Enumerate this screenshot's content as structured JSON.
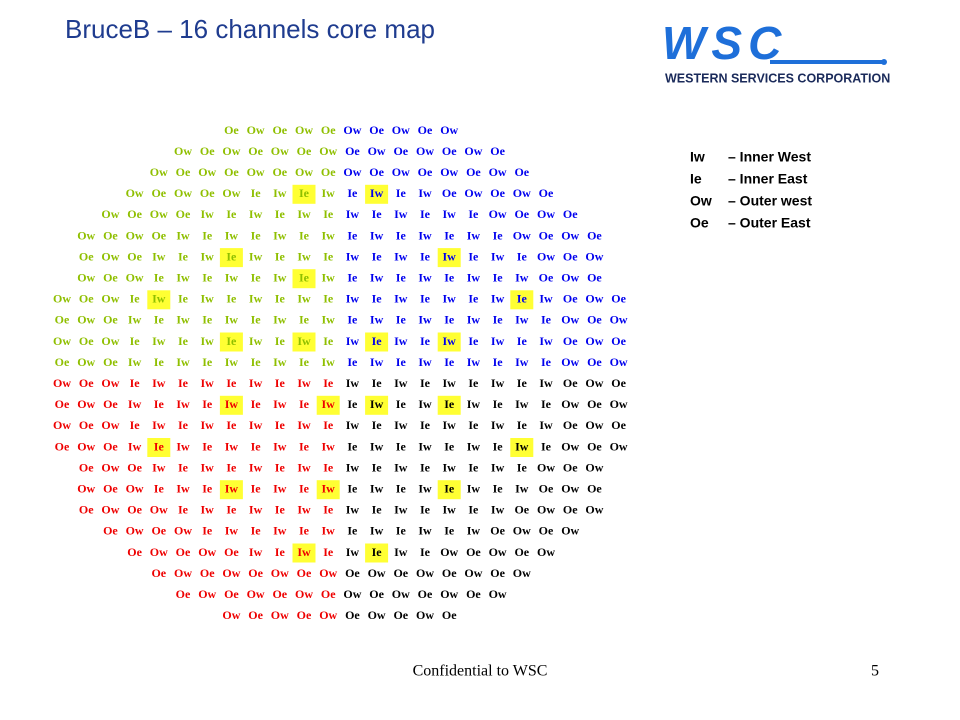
{
  "header": {
    "title": "BruceB – 16 channels core map"
  },
  "logo": {
    "mark": "WSC",
    "name": "WESTERN SERVICES CORPORATION"
  },
  "legend": [
    {
      "code": "Iw",
      "text": "– Inner West"
    },
    {
      "code": "Ie",
      "text": "– Inner East"
    },
    {
      "code": "Ow",
      "text": "– Outer west"
    },
    {
      "code": "Oe",
      "text": "– Outer East"
    }
  ],
  "core_map": {
    "quadrant_colors": {
      "top_left": "#8fbf00",
      "top_right": "#0000ee",
      "bottom_left": "#ee0000",
      "bottom_right": "#000000"
    },
    "highlight_color": "#ffff33",
    "rows": [
      {
        "cells": [
          "Oe",
          "Ow",
          "Oe",
          "Ow",
          "Oe",
          "Ow",
          "Oe",
          "Ow",
          "Oe",
          "Ow"
        ]
      },
      {
        "cells": [
          "Ow",
          "Oe",
          "Ow",
          "Oe",
          "Ow",
          "Oe",
          "Ow",
          "Oe",
          "Ow",
          "Oe",
          "Ow",
          "Oe",
          "Ow",
          "Oe"
        ]
      },
      {
        "cells": [
          "Ow",
          "Oe",
          "Ow",
          "Oe",
          "Ow",
          "Oe",
          "Ow",
          "Oe",
          "Ow",
          "Oe",
          "Ow",
          "Oe",
          "Ow",
          "Oe",
          "Ow",
          "Oe"
        ]
      },
      {
        "cells": [
          "Ow",
          "Oe",
          "Ow",
          "Oe",
          "Ow",
          "Ie",
          "Iw",
          "Ie",
          "Iw",
          "Ie",
          "Iw",
          "Ie",
          "Iw",
          "Oe",
          "Ow",
          "Oe",
          "Ow",
          "Oe"
        ],
        "selected": [
          7,
          10
        ]
      },
      {
        "cells": [
          "Ow",
          "Oe",
          "Ow",
          "Oe",
          "Iw",
          "Ie",
          "Iw",
          "Ie",
          "Iw",
          "Ie",
          "Iw",
          "Ie",
          "Iw",
          "Ie",
          "Iw",
          "Ie",
          "Ow",
          "Oe",
          "Ow",
          "Oe"
        ]
      },
      {
        "cells": [
          "Ow",
          "Oe",
          "Ow",
          "Oe",
          "Iw",
          "Ie",
          "Iw",
          "Ie",
          "Iw",
          "Ie",
          "Iw",
          "Ie",
          "Iw",
          "Ie",
          "Iw",
          "Ie",
          "Iw",
          "Ie",
          "Ow",
          "Oe",
          "Ow",
          "Oe"
        ]
      },
      {
        "cells": [
          "Oe",
          "Ow",
          "Oe",
          "Iw",
          "Ie",
          "Iw",
          "Ie",
          "Iw",
          "Ie",
          "Iw",
          "Ie",
          "Iw",
          "Ie",
          "Iw",
          "Ie",
          "Iw",
          "Ie",
          "Iw",
          "Ie",
          "Ow",
          "Oe",
          "Ow"
        ],
        "selected": [
          6,
          15
        ]
      },
      {
        "cells": [
          "Ow",
          "Oe",
          "Ow",
          "Ie",
          "Iw",
          "Ie",
          "Iw",
          "Ie",
          "Iw",
          "Ie",
          "Iw",
          "Ie",
          "Iw",
          "Ie",
          "Iw",
          "Ie",
          "Iw",
          "Ie",
          "Iw",
          "Oe",
          "Ow",
          "Oe"
        ],
        "selected": [
          9
        ]
      },
      {
        "cells": [
          "Ow",
          "Oe",
          "Ow",
          "Ie",
          "Iw",
          "Ie",
          "Iw",
          "Ie",
          "Iw",
          "Ie",
          "Iw",
          "Ie",
          "Iw",
          "Ie",
          "Iw",
          "Ie",
          "Iw",
          "Ie",
          "Iw",
          "Ie",
          "Iw",
          "Oe",
          "Ow",
          "Oe"
        ],
        "selected": [
          4,
          19
        ]
      },
      {
        "cells": [
          "Oe",
          "Ow",
          "Oe",
          "Iw",
          "Ie",
          "Iw",
          "Ie",
          "Iw",
          "Ie",
          "Iw",
          "Ie",
          "Iw",
          "Ie",
          "Iw",
          "Ie",
          "Iw",
          "Ie",
          "Iw",
          "Ie",
          "Iw",
          "Ie",
          "Ow",
          "Oe",
          "Ow"
        ]
      },
      {
        "cells": [
          "Ow",
          "Oe",
          "Ow",
          "Ie",
          "Iw",
          "Ie",
          "Iw",
          "Ie",
          "Iw",
          "Ie",
          "Iw",
          "Ie",
          "Iw",
          "Ie",
          "Iw",
          "Ie",
          "Iw",
          "Ie",
          "Iw",
          "Ie",
          "Iw",
          "Oe",
          "Ow",
          "Oe"
        ],
        "selected": [
          7,
          10,
          13,
          16
        ]
      },
      {
        "cells": [
          "Oe",
          "Ow",
          "Oe",
          "Iw",
          "Ie",
          "Iw",
          "Ie",
          "Iw",
          "Ie",
          "Iw",
          "Ie",
          "Iw",
          "Ie",
          "Iw",
          "Ie",
          "Iw",
          "Ie",
          "Iw",
          "Ie",
          "Iw",
          "Ie",
          "Ow",
          "Oe",
          "Ow"
        ]
      },
      {
        "cells": [
          "Ow",
          "Oe",
          "Ow",
          "Ie",
          "Iw",
          "Ie",
          "Iw",
          "Ie",
          "Iw",
          "Ie",
          "Iw",
          "Ie",
          "Iw",
          "Ie",
          "Iw",
          "Ie",
          "Iw",
          "Ie",
          "Iw",
          "Ie",
          "Iw",
          "Oe",
          "Ow",
          "Oe"
        ]
      },
      {
        "cells": [
          "Oe",
          "Ow",
          "Oe",
          "Iw",
          "Ie",
          "Iw",
          "Ie",
          "Iw",
          "Ie",
          "Iw",
          "Ie",
          "Iw",
          "Ie",
          "Iw",
          "Ie",
          "Iw",
          "Ie",
          "Iw",
          "Ie",
          "Iw",
          "Ie",
          "Ow",
          "Oe",
          "Ow"
        ],
        "selected": [
          7,
          11,
          13,
          16
        ]
      },
      {
        "cells": [
          "Ow",
          "Oe",
          "Ow",
          "Ie",
          "Iw",
          "Ie",
          "Iw",
          "Ie",
          "Iw",
          "Ie",
          "Iw",
          "Ie",
          "Iw",
          "Ie",
          "Iw",
          "Ie",
          "Iw",
          "Ie",
          "Iw",
          "Ie",
          "Iw",
          "Oe",
          "Ow",
          "Oe"
        ]
      },
      {
        "cells": [
          "Oe",
          "Ow",
          "Oe",
          "Iw",
          "Ie",
          "Iw",
          "Ie",
          "Iw",
          "Ie",
          "Iw",
          "Ie",
          "Iw",
          "Ie",
          "Iw",
          "Ie",
          "Iw",
          "Ie",
          "Iw",
          "Ie",
          "Iw",
          "Ie",
          "Ow",
          "Oe",
          "Ow"
        ],
        "selected": [
          4,
          19
        ]
      },
      {
        "cells": [
          "Oe",
          "Ow",
          "Oe",
          "Iw",
          "Ie",
          "Iw",
          "Ie",
          "Iw",
          "Ie",
          "Iw",
          "Ie",
          "Iw",
          "Ie",
          "Iw",
          "Ie",
          "Iw",
          "Ie",
          "Iw",
          "Ie",
          "Ow",
          "Oe",
          "Ow"
        ]
      },
      {
        "cells": [
          "Ow",
          "Oe",
          "Ow",
          "Ie",
          "Iw",
          "Ie",
          "Iw",
          "Ie",
          "Iw",
          "Ie",
          "Iw",
          "Ie",
          "Iw",
          "Ie",
          "Iw",
          "Ie",
          "Iw",
          "Ie",
          "Iw",
          "Oe",
          "Ow",
          "Oe"
        ],
        "selected": [
          6,
          10,
          15
        ]
      },
      {
        "cells": [
          "Oe",
          "Ow",
          "Oe",
          "Ow",
          "Ie",
          "Iw",
          "Ie",
          "Iw",
          "Ie",
          "Iw",
          "Ie",
          "Iw",
          "Ie",
          "Iw",
          "Ie",
          "Iw",
          "Ie",
          "Iw",
          "Oe",
          "Ow",
          "Oe",
          "Ow"
        ]
      },
      {
        "cells": [
          "Oe",
          "Ow",
          "Oe",
          "Ow",
          "Ie",
          "Iw",
          "Ie",
          "Iw",
          "Ie",
          "Iw",
          "Ie",
          "Iw",
          "Ie",
          "Iw",
          "Ie",
          "Iw",
          "Oe",
          "Ow",
          "Oe",
          "Ow"
        ]
      },
      {
        "cells": [
          "Oe",
          "Ow",
          "Oe",
          "Ow",
          "Oe",
          "Iw",
          "Ie",
          "Iw",
          "Ie",
          "Iw",
          "Ie",
          "Iw",
          "Ie",
          "Ow",
          "Oe",
          "Ow",
          "Oe",
          "Ow"
        ],
        "selected": [
          7,
          10
        ]
      },
      {
        "cells": [
          "Oe",
          "Ow",
          "Oe",
          "Ow",
          "Oe",
          "Ow",
          "Oe",
          "Ow",
          "Oe",
          "Ow",
          "Oe",
          "Ow",
          "Oe",
          "Ow",
          "Oe",
          "Ow"
        ]
      },
      {
        "cells": [
          "Oe",
          "Ow",
          "Oe",
          "Ow",
          "Oe",
          "Ow",
          "Oe",
          "Ow",
          "Oe",
          "Ow",
          "Oe",
          "Ow",
          "Oe",
          "Ow"
        ]
      },
      {
        "cells": [
          "Ow",
          "Oe",
          "Ow",
          "Oe",
          "Ow",
          "Oe",
          "Ow",
          "Oe",
          "Ow",
          "Oe"
        ]
      }
    ]
  },
  "footer": {
    "text": "Confidential to WSC",
    "page": "5"
  }
}
